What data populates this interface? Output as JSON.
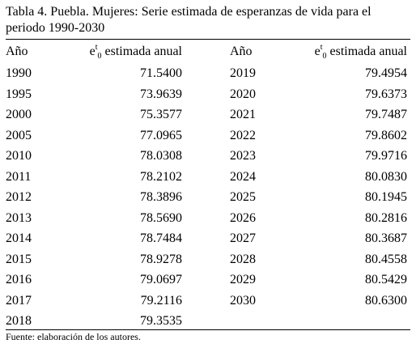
{
  "caption": "Tabla 4. Puebla. Mujeres: Serie estimada de esperanzas de vida para el periodo 1990-2030",
  "headers": {
    "year": "Año",
    "value_base": "e",
    "value_sup": "t",
    "value_sub": "0",
    "value_rest": " estimada anual"
  },
  "left_rows": [
    {
      "year": "1990",
      "value": "71.5400"
    },
    {
      "year": "1995",
      "value": "73.9639"
    },
    {
      "year": "2000",
      "value": "75.3577"
    },
    {
      "year": "2005",
      "value": "77.0965"
    },
    {
      "year": "2010",
      "value": "78.0308"
    },
    {
      "year": "2011",
      "value": "78.2102"
    },
    {
      "year": "2012",
      "value": "78.3896"
    },
    {
      "year": "2013",
      "value": "78.5690"
    },
    {
      "year": "2014",
      "value": "78.7484"
    },
    {
      "year": "2015",
      "value": "78.9278"
    },
    {
      "year": "2016",
      "value": "79.0697"
    },
    {
      "year": "2017",
      "value": "79.2116"
    },
    {
      "year": "2018",
      "value": "79.3535"
    }
  ],
  "right_rows": [
    {
      "year": "2019",
      "value": "79.4954"
    },
    {
      "year": "2020",
      "value": "79.6373"
    },
    {
      "year": "2021",
      "value": "79.7487"
    },
    {
      "year": "2022",
      "value": "79.8602"
    },
    {
      "year": "2023",
      "value": "79.9716"
    },
    {
      "year": "2024",
      "value": "80.0830"
    },
    {
      "year": "2025",
      "value": "80.1945"
    },
    {
      "year": "2026",
      "value": "80.2816"
    },
    {
      "year": "2027",
      "value": "80.3687"
    },
    {
      "year": "2028",
      "value": "80.4558"
    },
    {
      "year": "2029",
      "value": "80.5429"
    },
    {
      "year": "2030",
      "value": "80.6300"
    }
  ],
  "source": "Fuente: elaboración de los autores."
}
